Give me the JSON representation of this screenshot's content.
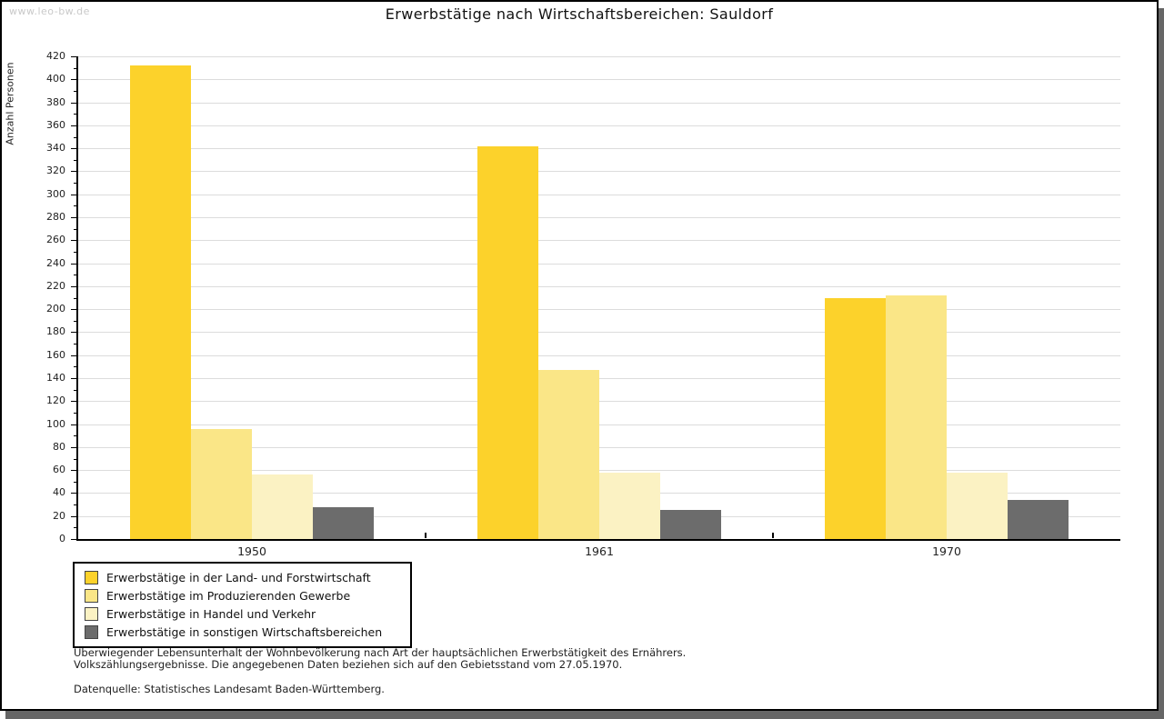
{
  "watermark": "www.leo-bw.de",
  "title": "Erwerbstätige nach Wirtschaftsbereichen: Sauldorf",
  "chart_data": {
    "type": "bar",
    "title": "Erwerbstätige nach Wirtschaftsbereichen: Sauldorf",
    "ylabel": "Anzahl Personen",
    "xlabel": "",
    "categories": [
      "1950",
      "1961",
      "1970"
    ],
    "series": [
      {
        "name": "Erwerbstätige in der Land- und Forstwirtschaft",
        "color": "#FCD22B",
        "values": [
          412,
          342,
          210
        ]
      },
      {
        "name": "Erwerbstätige im Produzierenden Gewerbe",
        "color": "#FAE687",
        "values": [
          96,
          147,
          212
        ]
      },
      {
        "name": "Erwerbstätige in Handel und Verkehr",
        "color": "#FBF2C3",
        "values": [
          56,
          58,
          58
        ]
      },
      {
        "name": "Erwerbstätige in sonstigen Wirtschaftsbereichen",
        "color": "#6C6C6C",
        "values": [
          28,
          25,
          34
        ]
      }
    ],
    "ylim": [
      0,
      420
    ],
    "ytick_step": 20,
    "minor_step": 10,
    "grid": true,
    "legend_position": "bottom-left",
    "gridline_color": "#DCDCDC"
  },
  "footer": {
    "line1": "Überwiegender Lebensunterhalt der Wohnbevölkerung nach Art der hauptsächlichen Erwerbstätigkeit des Ernährers.",
    "line2": "Volkszählungsergebnisse. Die angegebenen Daten beziehen sich auf den Gebietsstand vom 27.05.1970.",
    "line3": "Datenquelle: Statistisches Landesamt Baden-Württemberg."
  }
}
